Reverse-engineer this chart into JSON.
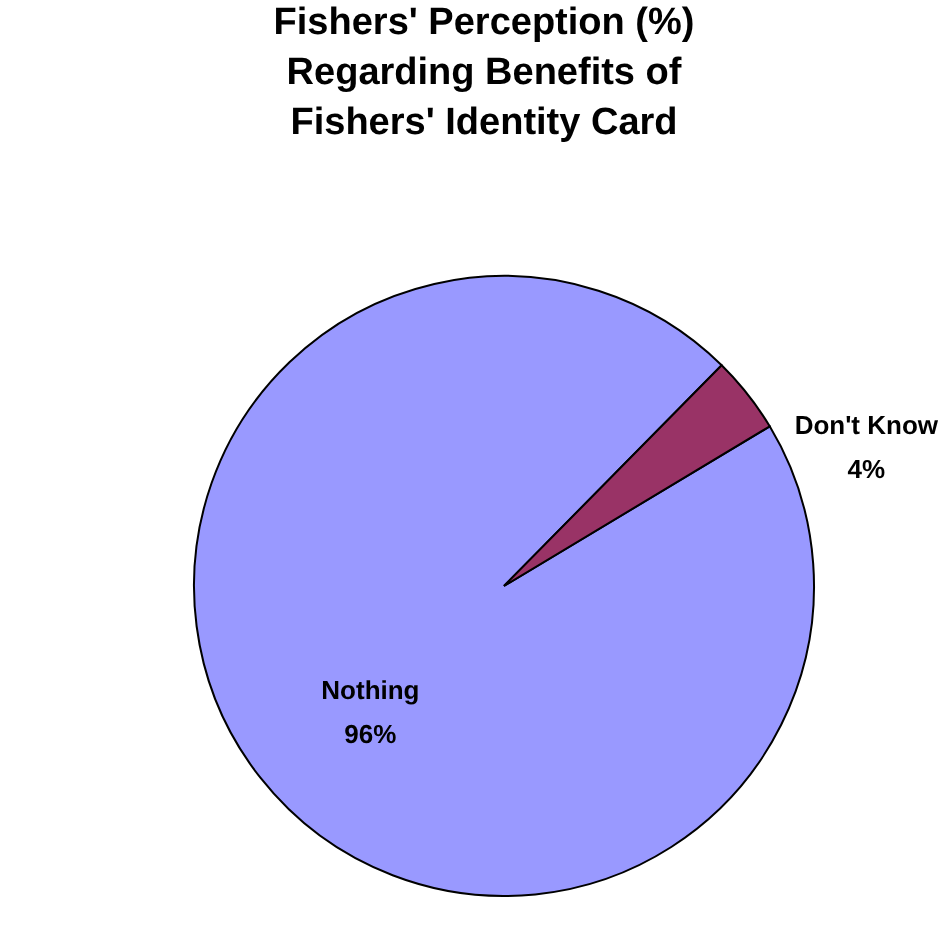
{
  "chart_data": {
    "type": "pie",
    "title": "Fishers' Perception (%)\nRegarding Benefits of\nFishers' Identity Card",
    "categories": [
      "Nothing",
      "Don't Know"
    ],
    "values": [
      96,
      4
    ],
    "colors": [
      "#9999ff",
      "#993366"
    ],
    "value_labels": [
      "96%",
      "4%"
    ],
    "legend": false
  }
}
